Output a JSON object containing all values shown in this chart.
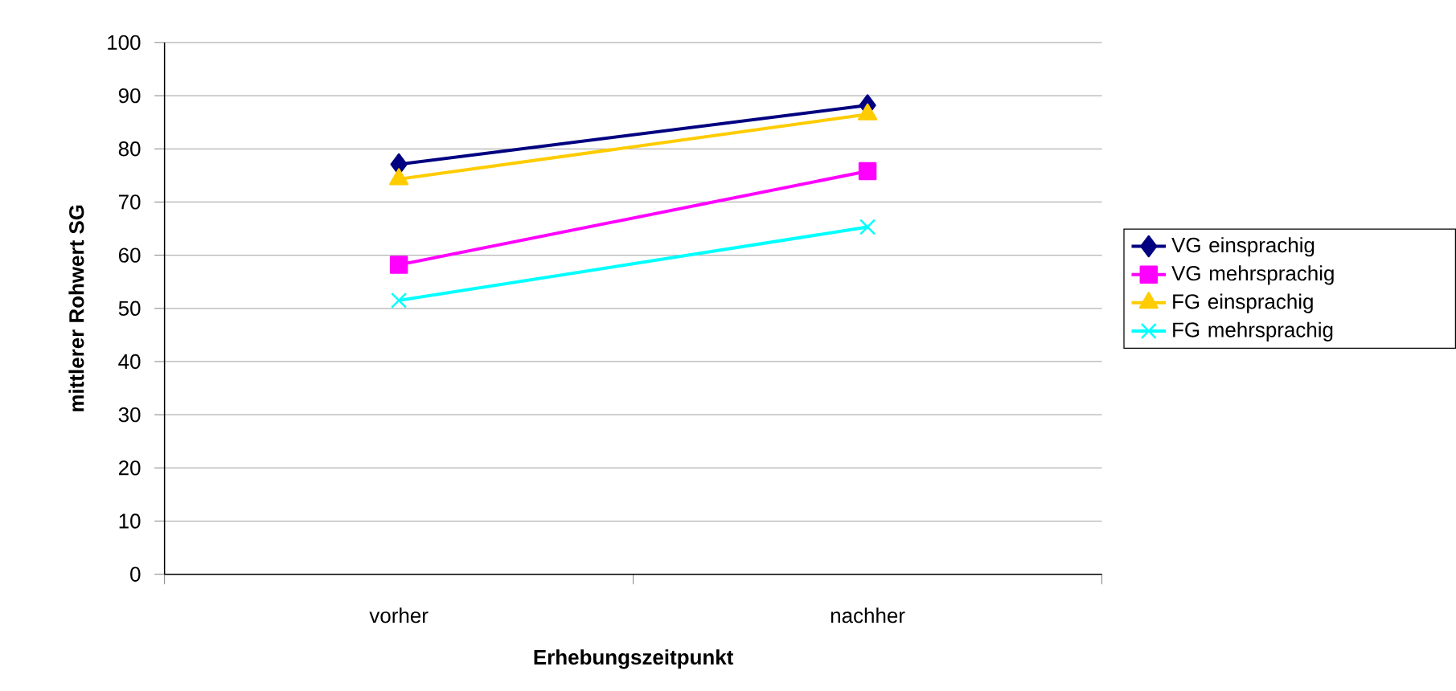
{
  "chart_data": {
    "type": "line",
    "xlabel": "Erhebungszeitpunkt",
    "ylabel": "mittlerer Rohwert SG",
    "categories": [
      "vorher",
      "nachher"
    ],
    "series": [
      {
        "name": "VG einsprachig",
        "color": "#000080",
        "marker": "diamond",
        "values": [
          77.1,
          88.2
        ]
      },
      {
        "name": "VG mehrsprachig",
        "color": "#ff00ff",
        "marker": "square",
        "values": [
          58.2,
          75.8
        ]
      },
      {
        "name": "FG einsprachig",
        "color": "#ffcc00",
        "marker": "triangle",
        "values": [
          74.3,
          86.5
        ]
      },
      {
        "name": "FG mehrsprachig",
        "color": "#00ffff",
        "marker": "cross",
        "values": [
          51.5,
          65.3
        ]
      }
    ],
    "ylim": [
      0,
      100
    ],
    "yticks": [
      0,
      10,
      20,
      30,
      40,
      50,
      60,
      70,
      80,
      90,
      100
    ],
    "grid": "y",
    "legend": "right"
  }
}
